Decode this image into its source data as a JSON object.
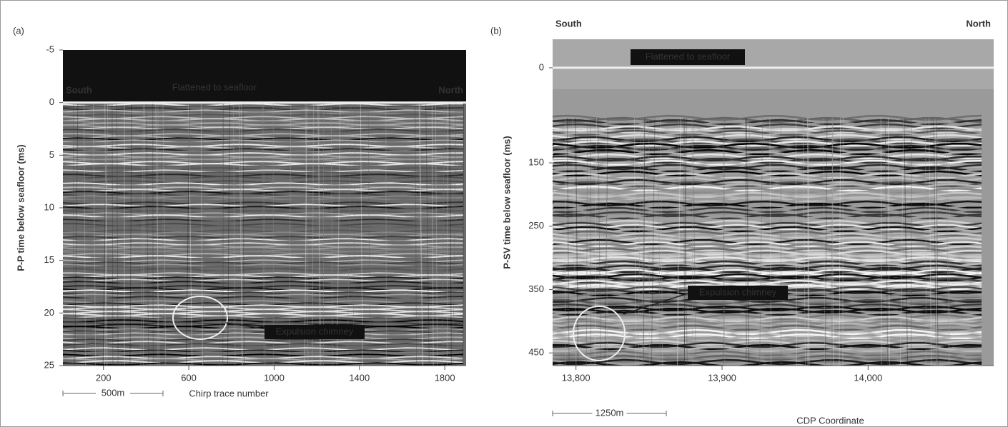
{
  "chart_data": [
    {
      "type": "seismic",
      "panel_label": "(a)",
      "y_label": "P-P time below seafloor (ms)",
      "x_label": "Chirp trace number",
      "ylim": [
        -5,
        25
      ],
      "yticks": [
        -5,
        0,
        5,
        10,
        15,
        20,
        25
      ],
      "y_inverted": true,
      "xlim": [
        10,
        1900
      ],
      "xticks": [
        200,
        600,
        1000,
        1400,
        1800
      ],
      "left_text": "South",
      "right_text": "North",
      "flatten_text": "Flattened to seafloor",
      "chimney_text": "Expulsion chimney",
      "scale_text": "500m"
    },
    {
      "type": "seismic",
      "panel_label": "(b)",
      "y_label": "P-SV time below seafloor (ms)",
      "x_label": "CDP Coordinate",
      "ylim": [
        -45,
        470
      ],
      "yticks": [
        0,
        150,
        250,
        350,
        450
      ],
      "y_inverted": true,
      "xlim": [
        13784,
        14086
      ],
      "xticks": [
        {
          "value": 13800,
          "label": "13,800"
        },
        {
          "value": 13900,
          "label": "13,900"
        },
        {
          "value": 14000,
          "label": "14,000"
        }
      ],
      "left_text": "South",
      "right_text": "North",
      "flatten_text": "Flattened to seafloor",
      "chimney_text": "Expulsion chimney",
      "scale_text": "1250m"
    }
  ]
}
